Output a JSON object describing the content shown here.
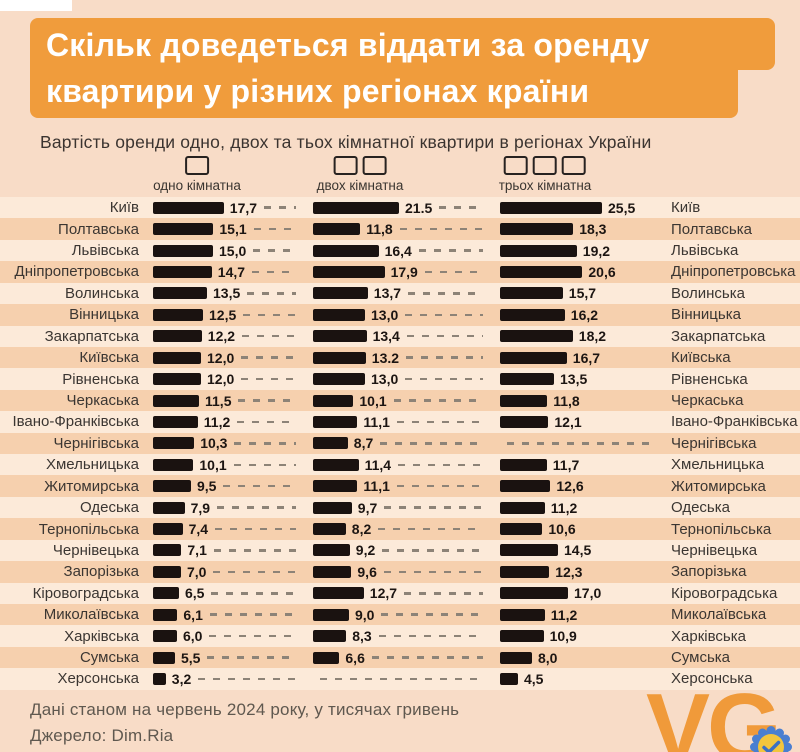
{
  "page": {
    "bg": "#f8dcc7",
    "accent": "#f09c3c",
    "bar_color": "#1a1210",
    "stripe_dark": "#f6d0ae",
    "stripe_light": "#fcead9"
  },
  "header": {
    "line1": "Скільк доведеться віддати за оренду",
    "line2": "квартири у різних регіонах країни"
  },
  "subtitle": "Вартість оренди одно, двох та тьох кімнатної квартири в регіонах України",
  "legend": {
    "items": [
      {
        "label": "одно кімнатна",
        "boxes": 1
      },
      {
        "label": "двох кімнатна",
        "boxes": 2
      },
      {
        "label": "трьох кімнатна",
        "boxes": 3
      }
    ]
  },
  "chart_data": {
    "type": "bar",
    "orientation": "horizontal",
    "unit": "тисяч гривень",
    "series": [
      "одно кімнатна",
      "двох кімнатна",
      "трьох кімнатна"
    ],
    "rows": [
      {
        "region": "Київ",
        "values": [
          "17,7",
          "21.5",
          "25,5"
        ]
      },
      {
        "region": "Полтавська",
        "values": [
          "15,1",
          "11,8",
          "18,3"
        ]
      },
      {
        "region": "Львівська",
        "values": [
          "15,0",
          "16,4",
          "19,2"
        ]
      },
      {
        "region": "Дніпропетровська",
        "values": [
          "14,7",
          "17,9",
          "20,6"
        ]
      },
      {
        "region": "Волинська",
        "values": [
          "13,5",
          "13,7",
          "15,7"
        ]
      },
      {
        "region": "Вінницька",
        "values": [
          "12,5",
          "13,0",
          "16,2"
        ]
      },
      {
        "region": "Закарпатська",
        "values": [
          "12,2",
          "13,4",
          "18,2"
        ]
      },
      {
        "region": "Київська",
        "values": [
          "12,0",
          "13.2",
          "16,7"
        ]
      },
      {
        "region": "Рівненська",
        "values": [
          "12,0",
          "13,0",
          "13,5"
        ]
      },
      {
        "region": "Черкаська",
        "values": [
          "11,5",
          "10,1",
          "11,8"
        ]
      },
      {
        "region": "Івано-Франківська",
        "values": [
          "11,2",
          "11,1",
          "12,1"
        ]
      },
      {
        "region": "Чернігівська",
        "values": [
          "10,3",
          "8,7",
          null
        ]
      },
      {
        "region": "Хмельницька",
        "values": [
          "10,1",
          "11,4",
          "11,7"
        ]
      },
      {
        "region": "Житомирська",
        "values": [
          "9,5",
          "11,1",
          "12,6"
        ]
      },
      {
        "region": "Одеська",
        "values": [
          "7,9",
          "9,7",
          "11,2"
        ]
      },
      {
        "region": "Тернопільська",
        "values": [
          "7,4",
          "8,2",
          "10,6"
        ]
      },
      {
        "region": "Чернівецька",
        "values": [
          "7,1",
          "9,2",
          "14,5"
        ]
      },
      {
        "region": "Запорізька",
        "values": [
          "7,0",
          "9,6",
          "12,3"
        ]
      },
      {
        "region": "Кіровоградська",
        "values": [
          "6,5",
          "12,7",
          "17,0"
        ]
      },
      {
        "region": "Миколаївська",
        "values": [
          "6,1",
          "9,0",
          "11,2"
        ]
      },
      {
        "region": "Харківська",
        "values": [
          "6,0",
          "8,3",
          "10,9"
        ]
      },
      {
        "region": "Сумська",
        "values": [
          "5,5",
          "6,6",
          "8,0"
        ]
      },
      {
        "region": "Херсонська",
        "values": [
          "3,2",
          null,
          "4,5"
        ]
      }
    ]
  },
  "footer": {
    "note": "Дані станом на червень 2024 року, у тисячах гривень",
    "source": "Джерело: Dim.Ria"
  },
  "logo": {
    "text": "VG"
  }
}
